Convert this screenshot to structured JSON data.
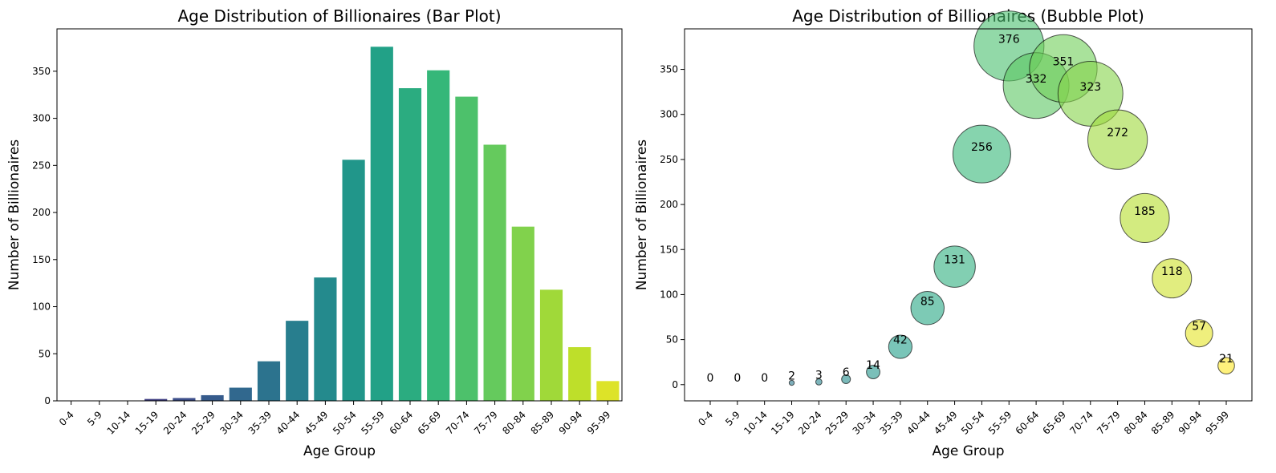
{
  "chart_data": [
    {
      "type": "bar",
      "title": "Age Distribution of Billionaires (Bar Plot)",
      "xlabel": "Age Group",
      "ylabel": "Number of Billionaires",
      "categories": [
        "0-4",
        "5-9",
        "10-14",
        "15-19",
        "20-24",
        "25-29",
        "30-34",
        "35-39",
        "40-44",
        "45-49",
        "50-54",
        "55-59",
        "60-64",
        "65-69",
        "70-74",
        "75-79",
        "80-84",
        "85-89",
        "90-94",
        "95-99"
      ],
      "values": [
        0,
        0,
        0,
        2,
        3,
        6,
        14,
        42,
        85,
        131,
        256,
        376,
        332,
        351,
        323,
        272,
        185,
        118,
        57,
        21
      ],
      "ylim": [
        0,
        395
      ],
      "yticks": [
        0,
        50,
        100,
        150,
        200,
        250,
        300,
        350
      ],
      "colormap": "viridis",
      "grid": false
    },
    {
      "type": "scatter",
      "subtype": "bubble",
      "title": "Age Distribution of Billionaires (Bubble Plot)",
      "xlabel": "Age Group",
      "ylabel": "Number of Billionaires",
      "categories": [
        "0-4",
        "5-9",
        "10-14",
        "15-19",
        "20-24",
        "25-29",
        "30-34",
        "35-39",
        "40-44",
        "45-49",
        "50-54",
        "55-59",
        "60-64",
        "65-69",
        "70-74",
        "75-79",
        "80-84",
        "85-89",
        "90-94",
        "95-99"
      ],
      "values": [
        0,
        0,
        0,
        2,
        3,
        6,
        14,
        42,
        85,
        131,
        256,
        376,
        332,
        351,
        323,
        272,
        185,
        118,
        57,
        21
      ],
      "bubble_size_encodes": "value",
      "data_labels": [
        "0",
        "0",
        "0",
        "2",
        "3",
        "6",
        "14",
        "42",
        "85",
        "131",
        "256",
        "376",
        "332",
        "351",
        "323",
        "272",
        "185",
        "118",
        "57",
        "21"
      ],
      "ylim": [
        -18,
        395
      ],
      "yticks": [
        0,
        50,
        100,
        150,
        200,
        250,
        300,
        350
      ],
      "colormap": "viridis",
      "bubble_alpha": 0.6,
      "grid": false
    }
  ],
  "colors": {
    "viridis_stops": [
      "#440154",
      "#482878",
      "#3e4989",
      "#31688e",
      "#26828e",
      "#1f9e89",
      "#35b779",
      "#6ece58",
      "#b5de2b",
      "#fde725"
    ],
    "edge": "#000000",
    "axis": "#000000"
  }
}
